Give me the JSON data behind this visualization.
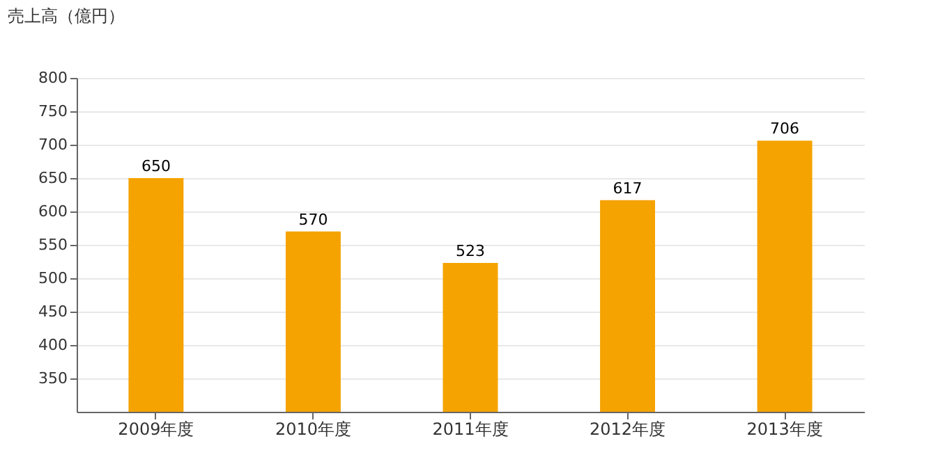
{
  "chart_data": {
    "type": "bar",
    "ylabel": "売上高（億円）",
    "categories": [
      "2009年度",
      "2010年度",
      "2011年度",
      "2012年度",
      "2013年度"
    ],
    "values": [
      650,
      570,
      523,
      617,
      706
    ],
    "color": "#f5a300",
    "ylim": [
      300,
      800
    ],
    "yticks": [
      350,
      400,
      450,
      500,
      550,
      600,
      650,
      700,
      750,
      800
    ],
    "grid": "y",
    "data_labels": true
  }
}
